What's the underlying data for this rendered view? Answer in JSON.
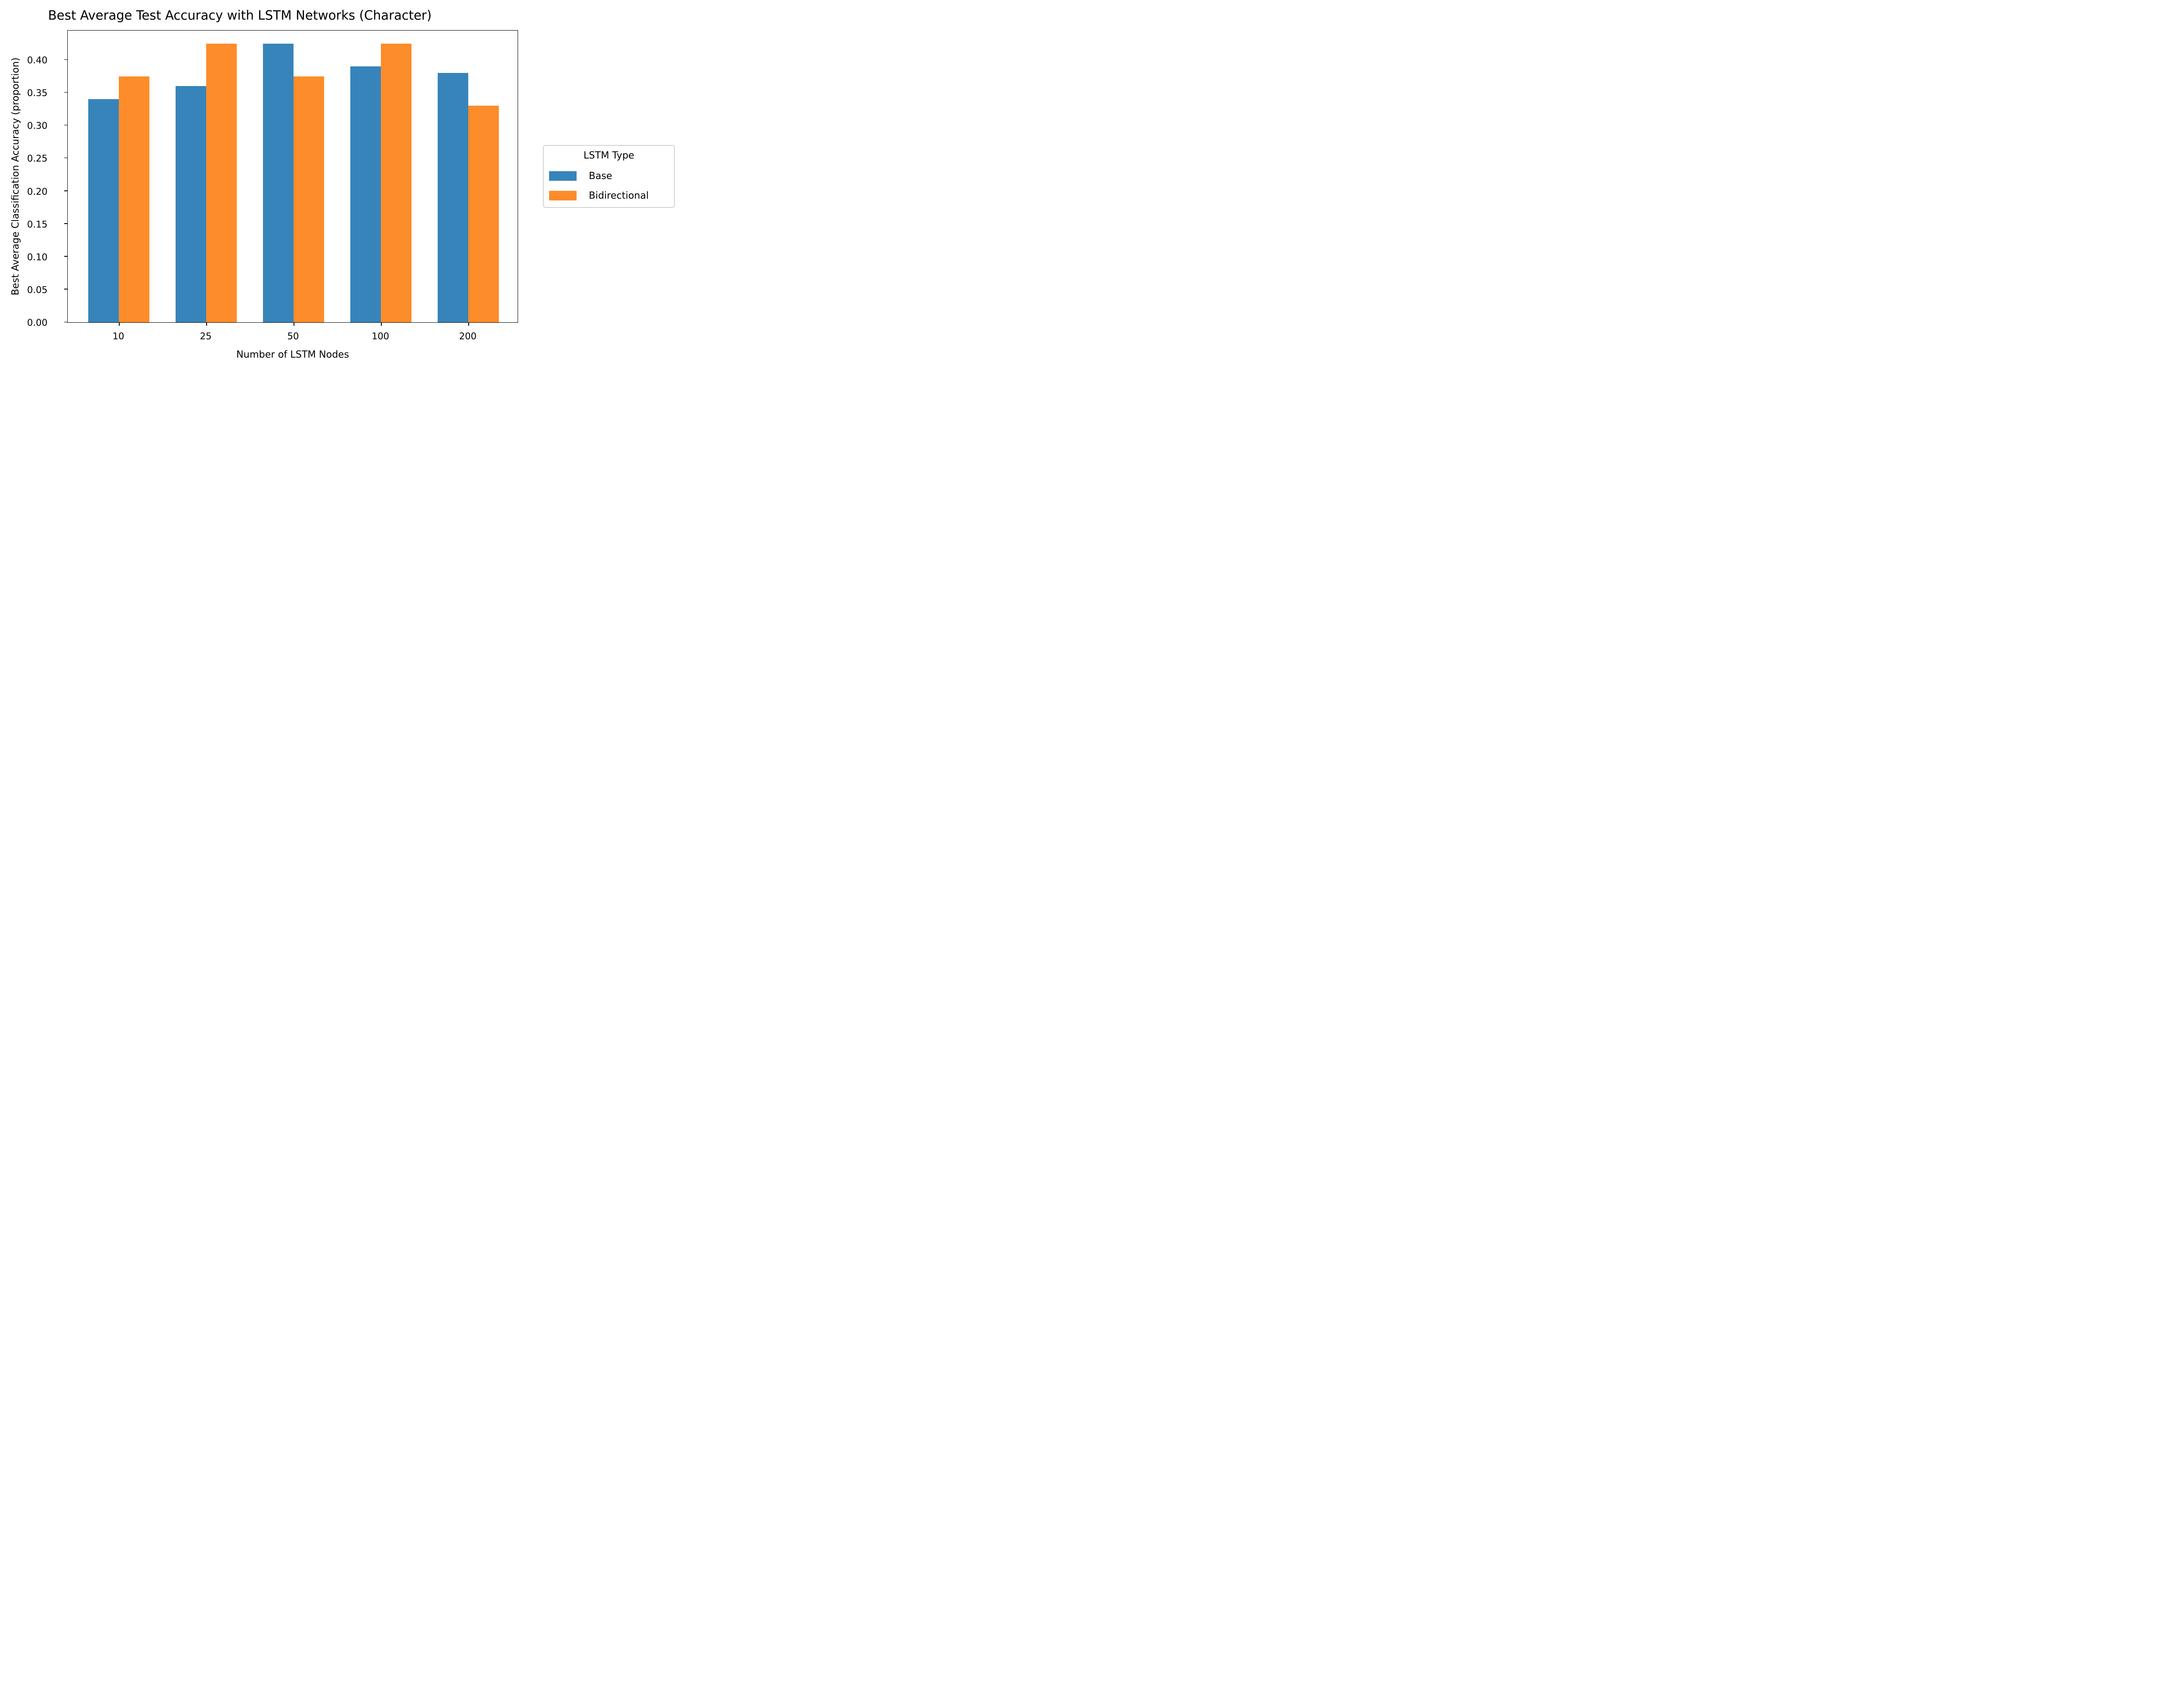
{
  "chart_data": {
    "type": "bar",
    "title": "Best Average Test Accuracy with LSTM Networks (Character)",
    "xlabel": "Number of LSTM Nodes",
    "ylabel": "Best Average Classification Accuracy (proportion)",
    "categories": [
      "10",
      "25",
      "50",
      "100",
      "200"
    ],
    "series": [
      {
        "name": "Base",
        "color": "#3784bb",
        "values": [
          0.34,
          0.36,
          0.425,
          0.39,
          0.38
        ]
      },
      {
        "name": "Bidirectional",
        "color": "#fd8c2a",
        "values": [
          0.375,
          0.425,
          0.375,
          0.425,
          0.33
        ]
      }
    ],
    "ylim": [
      0,
      0.446
    ],
    "yticks": [
      "0.00",
      "0.05",
      "0.10",
      "0.15",
      "0.20",
      "0.25",
      "0.30",
      "0.35",
      "0.40"
    ],
    "grid": false,
    "legend": {
      "title": "LSTM Type",
      "position": "outside right"
    }
  }
}
